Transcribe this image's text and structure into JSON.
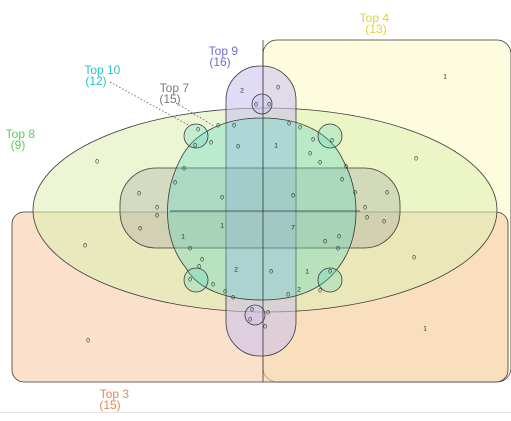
{
  "sets": [
    {
      "key": "top4",
      "name": "Top 4",
      "size": "(13)",
      "color": "#e1d23a",
      "fill": "#fdfbd8"
    },
    {
      "key": "top3",
      "name": "Top 3",
      "size": "(15)",
      "color": "#e5894f",
      "fill": "#f8cba9"
    },
    {
      "key": "top8",
      "name": "Top 8",
      "size": "(9)",
      "color": "#5ec95e",
      "fill": "#dcefb3"
    },
    {
      "key": "top7",
      "name": "Top 7",
      "size": "(15)",
      "color": "#7a7a7a",
      "fill": "#9a9a9a"
    },
    {
      "key": "top10",
      "name": "Top 10",
      "size": "(12)",
      "color": "#24c6c8",
      "fill": "#5fd8c3"
    },
    {
      "key": "top9",
      "name": "Top 9",
      "size": "(16)",
      "color": "#6b70cc",
      "fill": "#c8c0ec"
    }
  ],
  "region_counts": [
    "1",
    "0",
    "0",
    "0",
    "0",
    "1",
    "0",
    "0",
    "0",
    "2",
    "0",
    "0",
    "0",
    "0",
    "0",
    "1",
    "0",
    "0",
    "0",
    "0",
    "0",
    "0",
    "0",
    "0",
    "0",
    "0",
    "0",
    "0",
    "0",
    "0",
    "0",
    "7",
    "1",
    "0",
    "0",
    "0",
    "0",
    "0",
    "1",
    "0",
    "0",
    "0",
    "0",
    "0",
    "2",
    "0",
    "0",
    "0",
    "0",
    "0",
    "0",
    "0",
    "0",
    "0",
    "0",
    "0",
    "0",
    "0",
    "0",
    "0",
    "0",
    "0",
    "0"
  ]
}
